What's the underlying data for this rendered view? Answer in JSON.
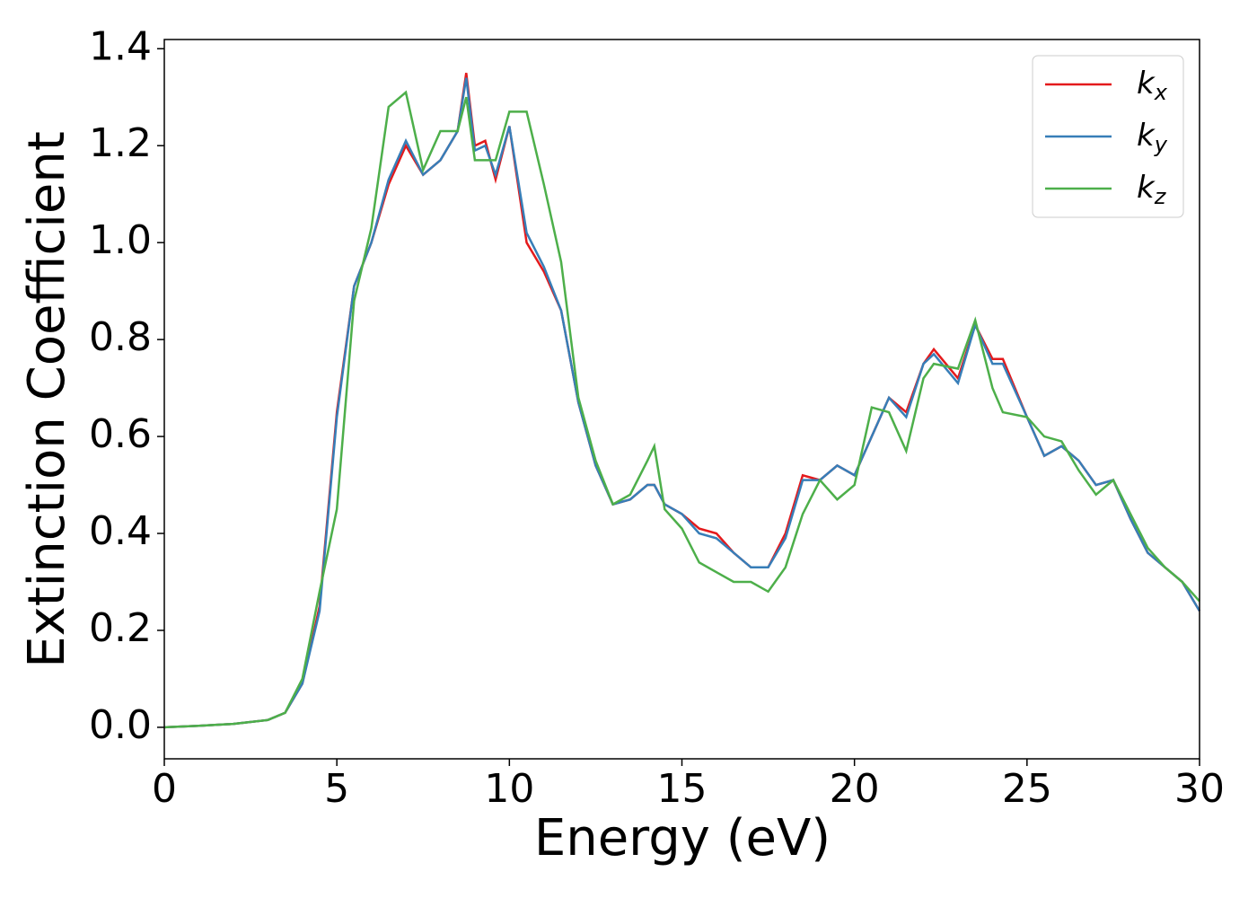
{
  "chart_data": {
    "type": "line",
    "xlabel": "Energy (eV)",
    "ylabel": "Extinction Coefficient",
    "x": [
      0,
      1,
      2,
      3,
      3.5,
      4,
      4.5,
      5,
      5.5,
      6,
      6.5,
      7,
      7.5,
      8,
      8.5,
      8.75,
      9,
      9.3,
      9.6,
      10,
      10.5,
      11,
      11.5,
      12,
      12.5,
      13,
      13.5,
      14,
      14.2,
      14.5,
      15,
      15.5,
      16,
      16.5,
      17,
      17.5,
      18,
      18.5,
      19,
      19.5,
      20,
      20.5,
      21,
      21.5,
      22,
      22.3,
      23,
      23.5,
      24,
      24.3,
      25,
      25.5,
      26,
      26.5,
      27,
      27.5,
      28,
      28.5,
      29,
      29.5,
      30
    ],
    "series": [
      {
        "name": "kx",
        "color": "#e41a1c",
        "values": [
          0,
          0.003,
          0.007,
          0.015,
          0.03,
          0.09,
          0.25,
          0.65,
          0.91,
          1.0,
          1.12,
          1.2,
          1.14,
          1.17,
          1.23,
          1.35,
          1.2,
          1.21,
          1.13,
          1.24,
          1.0,
          0.94,
          0.86,
          0.67,
          0.54,
          0.46,
          0.47,
          0.5,
          0.5,
          0.46,
          0.44,
          0.41,
          0.4,
          0.36,
          0.33,
          0.33,
          0.4,
          0.52,
          0.51,
          0.54,
          0.52,
          0.6,
          0.68,
          0.65,
          0.75,
          0.78,
          0.72,
          0.83,
          0.76,
          0.76,
          0.64,
          0.56,
          0.58,
          0.55,
          0.5,
          0.51,
          0.43,
          0.36,
          0.33,
          0.3,
          0.24
        ]
      },
      {
        "name": "ky",
        "color": "#377eb8",
        "values": [
          0,
          0.003,
          0.007,
          0.015,
          0.03,
          0.09,
          0.24,
          0.64,
          0.91,
          1.0,
          1.13,
          1.21,
          1.14,
          1.17,
          1.23,
          1.34,
          1.19,
          1.2,
          1.14,
          1.24,
          1.02,
          0.95,
          0.86,
          0.67,
          0.54,
          0.46,
          0.47,
          0.5,
          0.5,
          0.46,
          0.44,
          0.4,
          0.39,
          0.36,
          0.33,
          0.33,
          0.39,
          0.51,
          0.51,
          0.54,
          0.52,
          0.6,
          0.68,
          0.64,
          0.75,
          0.77,
          0.71,
          0.83,
          0.75,
          0.75,
          0.64,
          0.56,
          0.58,
          0.55,
          0.5,
          0.51,
          0.43,
          0.36,
          0.33,
          0.3,
          0.24
        ]
      },
      {
        "name": "kz",
        "color": "#4daf4a",
        "values": [
          0,
          0.003,
          0.007,
          0.015,
          0.03,
          0.1,
          0.28,
          0.45,
          0.88,
          1.03,
          1.28,
          1.31,
          1.15,
          1.23,
          1.23,
          1.3,
          1.17,
          1.17,
          1.17,
          1.27,
          1.27,
          1.12,
          0.96,
          0.68,
          0.55,
          0.46,
          0.48,
          0.55,
          0.58,
          0.45,
          0.41,
          0.34,
          0.32,
          0.3,
          0.3,
          0.28,
          0.33,
          0.44,
          0.51,
          0.47,
          0.5,
          0.66,
          0.65,
          0.57,
          0.72,
          0.75,
          0.74,
          0.84,
          0.7,
          0.65,
          0.64,
          0.6,
          0.59,
          0.53,
          0.48,
          0.51,
          0.44,
          0.37,
          0.33,
          0.3,
          0.26
        ]
      }
    ],
    "xlim": [
      0,
      30
    ],
    "xticks": [
      0,
      5,
      10,
      15,
      20,
      25,
      30
    ],
    "ylim": [
      -0.065,
      1.419
    ],
    "yticks": [
      {
        "value": 0,
        "label": "0.0"
      },
      0.2,
      0.4,
      0.6,
      0.8,
      {
        "value": 1,
        "label": "1.0"
      },
      1.2,
      1.4
    ],
    "grid": false,
    "legend": "upper right"
  }
}
